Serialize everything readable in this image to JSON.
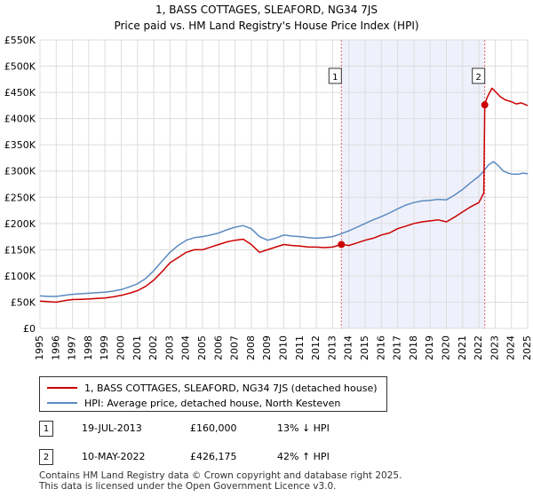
{
  "chart_data": {
    "type": "line",
    "title": "1, BASS COTTAGES, SLEAFORD, NG34 7JS",
    "subtitle": "Price paid vs. HM Land Registry's House Price Index (HPI)",
    "xlim": [
      1995,
      2025
    ],
    "ylim": [
      0,
      550000
    ],
    "y_ticks": [
      0,
      50000,
      100000,
      150000,
      200000,
      250000,
      300000,
      350000,
      400000,
      450000,
      500000,
      550000
    ],
    "y_tick_labels": [
      "£0",
      "£50K",
      "£100K",
      "£150K",
      "£200K",
      "£250K",
      "£300K",
      "£350K",
      "£400K",
      "£450K",
      "£500K",
      "£550K"
    ],
    "x_ticks": [
      1995,
      1996,
      1997,
      1998,
      1999,
      2000,
      2001,
      2002,
      2003,
      2004,
      2005,
      2006,
      2007,
      2008,
      2009,
      2010,
      2011,
      2012,
      2013,
      2014,
      2015,
      2016,
      2017,
      2018,
      2019,
      2020,
      2021,
      2022,
      2023,
      2024,
      2025
    ],
    "x_tick_labels": [
      "1995",
      "1996",
      "1997",
      "1998",
      "1999",
      "2000",
      "2001",
      "2002",
      "2003",
      "2004",
      "2005",
      "2006",
      "2007",
      "2008",
      "2009",
      "2010",
      "2011",
      "2012",
      "2013",
      "2014",
      "2015",
      "2016",
      "2017",
      "2018",
      "2019",
      "2020",
      "2021",
      "2022",
      "2023",
      "2024",
      "2025"
    ],
    "shaded_region": [
      2013.54,
      2022.36
    ],
    "series": [
      {
        "name": "1, BASS COTTAGES, SLEAFORD, NG34 7JS (detached house)",
        "color": "#cc0000",
        "x": [
          1995.0,
          1995.5,
          1996.0,
          1996.5,
          1997.0,
          1997.5,
          1998.0,
          1998.5,
          1999.0,
          1999.5,
          2000.0,
          2000.5,
          2001.0,
          2001.5,
          2002.0,
          2002.5,
          2003.0,
          2003.5,
          2004.0,
          2004.5,
          2005.0,
          2005.5,
          2006.0,
          2006.5,
          2007.0,
          2007.5,
          2008.0,
          2008.5,
          2009.0,
          2009.5,
          2010.0,
          2010.5,
          2011.0,
          2011.5,
          2012.0,
          2012.5,
          2013.0,
          2013.54,
          2014.0,
          2014.5,
          2015.0,
          2015.5,
          2016.0,
          2016.5,
          2017.0,
          2017.5,
          2018.0,
          2018.5,
          2019.0,
          2019.5,
          2020.0,
          2020.5,
          2021.0,
          2021.5,
          2022.0,
          2022.3,
          2022.36,
          2022.5,
          2022.8,
          2023.0,
          2023.3,
          2023.6,
          2024.0,
          2024.3,
          2024.6,
          2025.0
        ],
        "values": [
          52000,
          51000,
          50000,
          53000,
          55000,
          55500,
          56000,
          57000,
          58000,
          60000,
          63000,
          67000,
          72000,
          80000,
          92000,
          108000,
          125000,
          135000,
          145000,
          150000,
          150000,
          155000,
          160000,
          165000,
          168000,
          170000,
          160000,
          145000,
          150000,
          155000,
          160000,
          158000,
          157000,
          155000,
          155000,
          154000,
          155000,
          160000,
          158000,
          163000,
          168000,
          172000,
          178000,
          182000,
          190000,
          195000,
          200000,
          203000,
          205000,
          207000,
          203000,
          212000,
          222000,
          232000,
          240000,
          258000,
          426175,
          440000,
          458000,
          452000,
          442000,
          436000,
          432000,
          428000,
          430000,
          425000
        ]
      },
      {
        "name": "HPI: Average price, detached house, North Kesteven",
        "color": "#5b8ac0",
        "x": [
          1995.0,
          1995.5,
          1996.0,
          1996.5,
          1997.0,
          1997.5,
          1998.0,
          1998.5,
          1999.0,
          1999.5,
          2000.0,
          2000.5,
          2001.0,
          2001.5,
          2002.0,
          2002.5,
          2003.0,
          2003.5,
          2004.0,
          2004.5,
          2005.0,
          2005.5,
          2006.0,
          2006.5,
          2007.0,
          2007.5,
          2008.0,
          2008.5,
          2009.0,
          2009.5,
          2010.0,
          2010.5,
          2011.0,
          2011.5,
          2012.0,
          2012.5,
          2013.0,
          2013.5,
          2014.0,
          2014.5,
          2015.0,
          2015.5,
          2016.0,
          2016.5,
          2017.0,
          2017.5,
          2018.0,
          2018.5,
          2019.0,
          2019.5,
          2020.0,
          2020.5,
          2021.0,
          2021.5,
          2022.0,
          2022.3,
          2022.6,
          2022.9,
          2023.2,
          2023.5,
          2023.8,
          2024.1,
          2024.4,
          2024.7,
          2025.0
        ],
        "values": [
          62000,
          61000,
          61000,
          63000,
          65000,
          66000,
          67000,
          68000,
          69000,
          71000,
          74000,
          79000,
          85000,
          95000,
          110000,
          128000,
          145000,
          158000,
          168000,
          173000,
          175000,
          178000,
          182000,
          188000,
          193000,
          196000,
          190000,
          175000,
          168000,
          172000,
          178000,
          176000,
          175000,
          173000,
          172000,
          173000,
          175000,
          180000,
          186000,
          193000,
          200000,
          207000,
          213000,
          220000,
          228000,
          235000,
          240000,
          243000,
          244000,
          246000,
          245000,
          254000,
          265000,
          278000,
          290000,
          300000,
          312000,
          318000,
          310000,
          300000,
          296000,
          294000,
          294000,
          296000,
          295000
        ]
      }
    ],
    "transactions": [
      {
        "label": "1",
        "x": 2013.54,
        "value": 160000
      },
      {
        "label": "2",
        "x": 2022.36,
        "value": 426175
      }
    ]
  },
  "legend": {
    "property": "1, BASS COTTAGES, SLEAFORD, NG34 7JS (detached house)",
    "hpi": "HPI: Average price, detached house, North Kesteven"
  },
  "transactions_table": [
    {
      "num": "1",
      "date": "19-JUL-2013",
      "price": "£160,000",
      "hpi": "13% ↓ HPI"
    },
    {
      "num": "2",
      "date": "10-MAY-2022",
      "price": "£426,175",
      "hpi": "42% ↑ HPI"
    }
  ],
  "footer": {
    "line1": "Contains HM Land Registry data © Crown copyright and database right 2025.",
    "line2": "This data is licensed under the Open Government Licence v3.0."
  },
  "colors": {
    "property": "#cc0000",
    "hpi": "#5b8ac0",
    "shade": "#eef1fb",
    "grid": "#dddddd",
    "marker_line": "#e06060"
  }
}
